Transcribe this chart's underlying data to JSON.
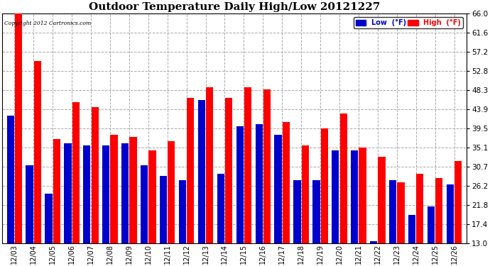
{
  "title": "Outdoor Temperature Daily High/Low 20121227",
  "copyright": "Copyright 2012 Cartronics.com",
  "dates": [
    "12/03",
    "12/04",
    "12/05",
    "12/06",
    "12/07",
    "12/08",
    "12/09",
    "12/10",
    "12/11",
    "12/12",
    "12/13",
    "12/14",
    "12/15",
    "12/16",
    "12/17",
    "12/18",
    "12/19",
    "12/20",
    "12/21",
    "12/22",
    "12/23",
    "12/24",
    "12/25",
    "12/26"
  ],
  "highs": [
    66.0,
    55.0,
    37.0,
    45.5,
    44.5,
    38.0,
    37.5,
    34.5,
    36.5,
    46.5,
    49.0,
    46.5,
    49.0,
    48.5,
    41.0,
    35.5,
    39.5,
    43.0,
    35.0,
    33.0,
    27.0,
    29.0,
    28.0,
    32.0
  ],
  "lows": [
    42.5,
    31.0,
    24.5,
    36.0,
    35.5,
    35.5,
    36.0,
    31.0,
    28.5,
    27.5,
    46.0,
    29.0,
    40.0,
    40.5,
    38.0,
    27.5,
    27.5,
    34.5,
    34.5,
    13.5,
    27.5,
    19.5,
    21.5,
    26.5
  ],
  "high_color": "#ff0000",
  "low_color": "#0000cc",
  "background_color": "#ffffff",
  "grid_color": "#aaaaaa",
  "ymin": 13.0,
  "ymax": 66.0,
  "yticks": [
    13.0,
    17.4,
    21.8,
    26.2,
    30.7,
    35.1,
    39.5,
    43.9,
    48.3,
    52.8,
    57.2,
    61.6,
    66.0
  ],
  "title_fontsize": 11,
  "legend_low_label": "Low  (°F)",
  "legend_high_label": "High  (°F)"
}
